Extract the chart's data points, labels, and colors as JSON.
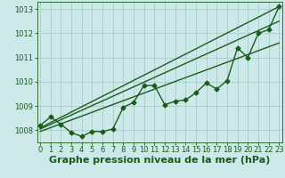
{
  "title": "Graphe pression niveau de la mer (hPa)",
  "bg_color": "#cce8e8",
  "grid_color": "#aacccc",
  "line_color": "#1a5c1a",
  "x_values": [
    0,
    1,
    2,
    3,
    4,
    5,
    6,
    7,
    8,
    9,
    10,
    11,
    12,
    13,
    14,
    15,
    16,
    17,
    18,
    19,
    20,
    21,
    22,
    23
  ],
  "y_data": [
    1008.2,
    1008.55,
    1008.25,
    1007.9,
    1007.75,
    1007.95,
    1007.95,
    1008.05,
    1008.95,
    1009.15,
    1009.85,
    1009.85,
    1009.05,
    1009.2,
    1009.25,
    1009.55,
    1009.95,
    1009.7,
    1010.05,
    1011.4,
    1011.0,
    1012.0,
    1012.15,
    1013.1
  ],
  "ylim": [
    1007.5,
    1013.3
  ],
  "yticks": [
    1008,
    1009,
    1010,
    1011,
    1012,
    1013
  ],
  "xticks": [
    0,
    1,
    2,
    3,
    4,
    5,
    6,
    7,
    8,
    9,
    10,
    11,
    12,
    13,
    14,
    15,
    16,
    17,
    18,
    19,
    20,
    21,
    22,
    23
  ],
  "trend1": [
    1008.1,
    1013.1
  ],
  "trend2": [
    1008.05,
    1012.5
  ],
  "trend3": [
    1007.95,
    1011.6
  ],
  "marker": "D",
  "marker_size": 2.5,
  "line_width": 1.0,
  "title_fontsize": 8,
  "tick_fontsize": 6
}
